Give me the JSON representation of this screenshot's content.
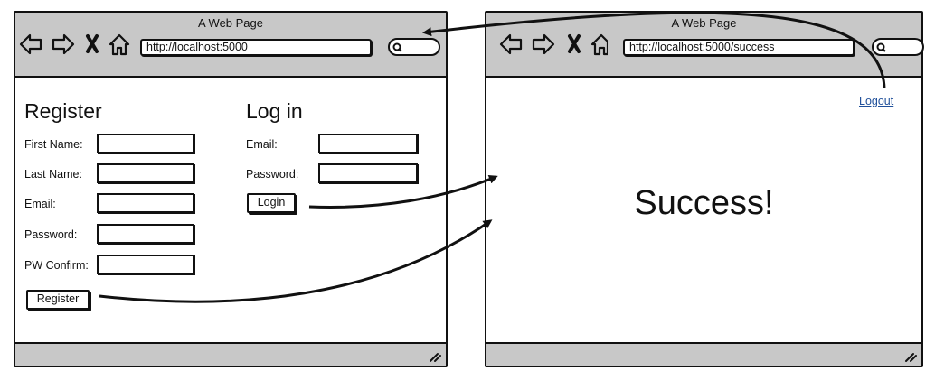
{
  "left_window": {
    "title": "A Web Page",
    "url": "http://localhost:5000",
    "register": {
      "heading": "Register",
      "fields": [
        "First Name:",
        "Last Name:",
        "Email:",
        "Password:",
        "PW Confirm:"
      ],
      "button_label": "Register"
    },
    "login": {
      "heading": "Log in",
      "fields": [
        "Email:",
        "Password:"
      ],
      "button_label": "Login"
    }
  },
  "right_window": {
    "title": "A Web Page",
    "url": "http://localhost:5000/success",
    "logout_label": "Logout",
    "message": "Success!"
  }
}
